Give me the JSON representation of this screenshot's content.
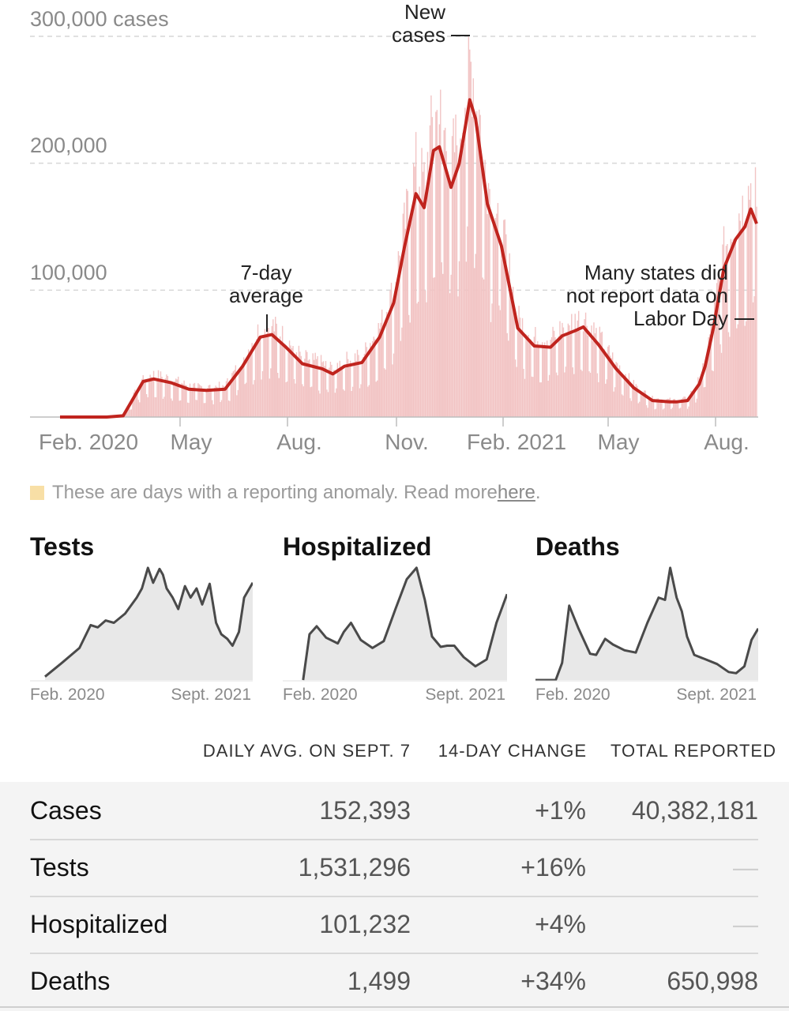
{
  "chart_data": {
    "type": "bar",
    "y_ticks": [
      "300,000 cases",
      "200,000",
      "100,000"
    ],
    "y_tick_values": [
      300000,
      200000,
      100000
    ],
    "ylim": [
      0,
      300000
    ],
    "x_ticks": [
      "Feb. 2020",
      "May",
      "Aug.",
      "Nov.",
      "Feb. 2021",
      "May",
      "Aug."
    ],
    "xlim": [
      "2020-01-21",
      "2021-09-07"
    ],
    "grid": true,
    "series": [
      {
        "name": "New cases",
        "style": "daily bars",
        "color": "#f2c4c4"
      },
      {
        "name": "7-day average",
        "style": "line",
        "color": "#c0241e",
        "x": [
          "2020-01-21",
          "2020-03-01",
          "2020-03-15",
          "2020-04-01",
          "2020-04-10",
          "2020-04-25",
          "2020-05-10",
          "2020-05-25",
          "2020-06-10",
          "2020-06-25",
          "2020-07-10",
          "2020-07-20",
          "2020-08-01",
          "2020-08-15",
          "2020-09-01",
          "2020-09-10",
          "2020-09-20",
          "2020-10-05",
          "2020-10-20",
          "2020-11-01",
          "2020-11-10",
          "2020-11-20",
          "2020-11-27",
          "2020-12-05",
          "2020-12-10",
          "2020-12-20",
          "2020-12-27",
          "2021-01-05",
          "2021-01-10",
          "2021-01-20",
          "2021-02-01",
          "2021-02-15",
          "2021-03-01",
          "2021-03-15",
          "2021-03-25",
          "2021-04-05",
          "2021-04-12",
          "2021-04-25",
          "2021-05-10",
          "2021-05-25",
          "2021-06-10",
          "2021-06-25",
          "2021-07-01",
          "2021-07-10",
          "2021-07-20",
          "2021-07-25",
          "2021-08-01",
          "2021-08-10",
          "2021-08-20",
          "2021-08-28",
          "2021-09-02",
          "2021-09-07"
        ],
        "y": [
          0,
          0,
          1000,
          28000,
          30000,
          27000,
          22000,
          21000,
          22000,
          40000,
          63000,
          65000,
          55000,
          42000,
          38000,
          34000,
          40000,
          43000,
          63000,
          90000,
          133000,
          176000,
          165000,
          210000,
          213000,
          181000,
          200000,
          250000,
          235000,
          168000,
          135000,
          70000,
          56000,
          55000,
          64000,
          68000,
          71000,
          57000,
          38000,
          23000,
          13000,
          12000,
          12000,
          13000,
          26000,
          40000,
          70000,
          117000,
          140000,
          150000,
          164000,
          152393
        ]
      }
    ],
    "annotations": {
      "new_cases": [
        "New",
        "cases"
      ],
      "avg": [
        "7-day",
        "average"
      ],
      "labor_day": [
        "Many states did",
        "not report data on",
        "Labor Day"
      ]
    }
  },
  "anomaly_note": {
    "text": "These are days with a reporting anomaly. Read more ",
    "link": "here",
    "suffix": ".",
    "color": "#f8dfa6"
  },
  "mini_charts": [
    {
      "title": "Tests",
      "x_start": "Feb. 2020",
      "x_end": "Sept. 2021",
      "x": [
        "2020-03-01",
        "2020-04-15",
        "2020-06-01",
        "2020-07-01",
        "2020-07-20",
        "2020-08-10",
        "2020-09-01",
        "2020-10-01",
        "2020-11-01",
        "2020-11-15",
        "2020-12-01",
        "2020-12-15",
        "2021-01-01",
        "2021-01-10",
        "2021-01-20",
        "2021-02-05",
        "2021-02-20",
        "2021-03-10",
        "2021-03-25",
        "2021-04-10",
        "2021-04-25",
        "2021-05-15",
        "2021-06-01",
        "2021-06-15",
        "2021-07-01",
        "2021-07-15",
        "2021-08-01",
        "2021-08-15",
        "2021-09-07"
      ],
      "y": [
        0.03,
        0.15,
        0.28,
        0.48,
        0.46,
        0.52,
        0.5,
        0.58,
        0.72,
        0.8,
        0.98,
        0.85,
        0.97,
        0.92,
        0.8,
        0.72,
        0.62,
        0.82,
        0.72,
        0.8,
        0.66,
        0.84,
        0.5,
        0.4,
        0.36,
        0.3,
        0.42,
        0.72,
        0.85
      ]
    },
    {
      "title": "Hospitalized",
      "x_start": "Feb. 2020",
      "x_end": "Sept. 2021",
      "x": [
        "2020-03-15",
        "2020-04-01",
        "2020-04-20",
        "2020-05-15",
        "2020-06-15",
        "2020-07-01",
        "2020-07-20",
        "2020-08-15",
        "2020-09-15",
        "2020-10-15",
        "2020-11-15",
        "2020-12-15",
        "2021-01-10",
        "2021-02-01",
        "2021-02-20",
        "2021-03-15",
        "2021-04-01",
        "2021-04-20",
        "2021-05-15",
        "2021-06-15",
        "2021-07-15",
        "2021-08-10",
        "2021-09-07"
      ],
      "y": [
        0,
        0.4,
        0.47,
        0.37,
        0.32,
        0.42,
        0.5,
        0.35,
        0.28,
        0.34,
        0.62,
        0.88,
        0.98,
        0.7,
        0.38,
        0.29,
        0.3,
        0.3,
        0.2,
        0.12,
        0.18,
        0.5,
        0.75
      ]
    },
    {
      "title": "Deaths",
      "x_start": "Feb. 2020",
      "x_end": "Sept. 2021",
      "x": [
        "2020-01-21",
        "2020-03-15",
        "2020-04-01",
        "2020-04-20",
        "2020-05-15",
        "2020-06-15",
        "2020-07-01",
        "2020-07-25",
        "2020-08-15",
        "2020-09-15",
        "2020-10-15",
        "2020-11-15",
        "2020-12-15",
        "2021-01-01",
        "2021-01-15",
        "2021-02-01",
        "2021-02-15",
        "2021-03-01",
        "2021-03-20",
        "2021-04-20",
        "2021-05-20",
        "2021-06-20",
        "2021-07-10",
        "2021-08-01",
        "2021-08-20",
        "2021-09-07"
      ],
      "y": [
        0,
        0,
        0.15,
        0.65,
        0.45,
        0.23,
        0.22,
        0.36,
        0.31,
        0.26,
        0.24,
        0.5,
        0.72,
        0.7,
        0.98,
        0.72,
        0.6,
        0.38,
        0.22,
        0.18,
        0.14,
        0.07,
        0.06,
        0.12,
        0.35,
        0.45
      ]
    }
  ],
  "stats_table": {
    "headers": [
      "DAILY AVG. ON SEPT. 7",
      "14-DAY CHANGE",
      "TOTAL REPORTED"
    ],
    "rows": [
      {
        "metric": "Cases",
        "avg": "152,393",
        "change": "+1%",
        "total": "40,382,181"
      },
      {
        "metric": "Tests",
        "avg": "1,531,296",
        "change": "+16%",
        "total": "—"
      },
      {
        "metric": "Hospitalized",
        "avg": "101,232",
        "change": "+4%",
        "total": "—"
      },
      {
        "metric": "Deaths",
        "avg": "1,499",
        "change": "+34%",
        "total": "650,998"
      }
    ]
  }
}
